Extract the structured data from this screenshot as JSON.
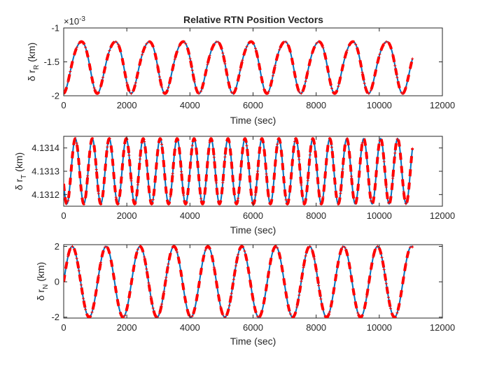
{
  "chart_data": [
    {
      "type": "line",
      "title": "Relative RTN Position Vectors",
      "xlabel": "Time (sec)",
      "ylabel": {
        "prefix": "δ r",
        "sub": "R",
        "suffix": " (km)"
      },
      "xlim": [
        0,
        12000
      ],
      "ylim": [
        -2,
        -1
      ],
      "y_exponent": "×10",
      "y_exponent_power": "-3",
      "xticks": [
        0,
        2000,
        4000,
        6000,
        8000,
        10000,
        12000
      ],
      "xtick_labels": [
        "0",
        "2000",
        "4000",
        "6000",
        "8000",
        "10000",
        "12000"
      ],
      "yticks": [
        -2,
        -1.5,
        -1
      ],
      "ytick_labels": [
        "-2",
        "-1.5",
        "-1"
      ],
      "grid": false,
      "series": [
        {
          "style": "solid",
          "color": "#0072BD",
          "model": "radial",
          "t_end": 11050
        },
        {
          "style": "dashed-markers",
          "color": "#FF0000",
          "model": "radial",
          "t_end": 11050
        }
      ]
    },
    {
      "type": "line",
      "title": "",
      "xlabel": "Time (sec)",
      "ylabel": {
        "prefix": "δ r",
        "sub": "T",
        "suffix": " (km)"
      },
      "xlim": [
        0,
        12000
      ],
      "ylim": [
        4.13115,
        4.13145
      ],
      "xticks": [
        0,
        2000,
        4000,
        6000,
        8000,
        10000,
        12000
      ],
      "xtick_labels": [
        "0",
        "2000",
        "4000",
        "6000",
        "8000",
        "10000",
        "12000"
      ],
      "yticks": [
        4.1312,
        4.1313,
        4.1314
      ],
      "ytick_labels": [
        "4.1312",
        "4.1313",
        "4.1314"
      ],
      "grid": false,
      "series": [
        {
          "style": "solid",
          "color": "#0072BD",
          "model": "along",
          "t_end": 11050
        },
        {
          "style": "dashed-markers",
          "color": "#FF0000",
          "model": "along",
          "t_end": 11050
        }
      ]
    },
    {
      "type": "line",
      "title": "",
      "xlabel": "Time (sec)",
      "ylabel": {
        "prefix": "δ r",
        "sub": "N",
        "suffix": " (km)"
      },
      "xlim": [
        0,
        12000
      ],
      "ylim": [
        -2.05,
        2.1
      ],
      "xticks": [
        0,
        2000,
        4000,
        6000,
        8000,
        10000,
        12000
      ],
      "xtick_labels": [
        "0",
        "2000",
        "4000",
        "6000",
        "8000",
        "10000",
        "12000"
      ],
      "yticks": [
        -2,
        0,
        2
      ],
      "ytick_labels": [
        "-2",
        "0",
        "2"
      ],
      "grid": false,
      "series": [
        {
          "style": "solid",
          "color": "#0072BD",
          "model": "normal",
          "t_end": 11050
        },
        {
          "style": "dashed-markers",
          "color": "#FF0000",
          "model": "normal",
          "t_end": 11050
        }
      ]
    }
  ]
}
